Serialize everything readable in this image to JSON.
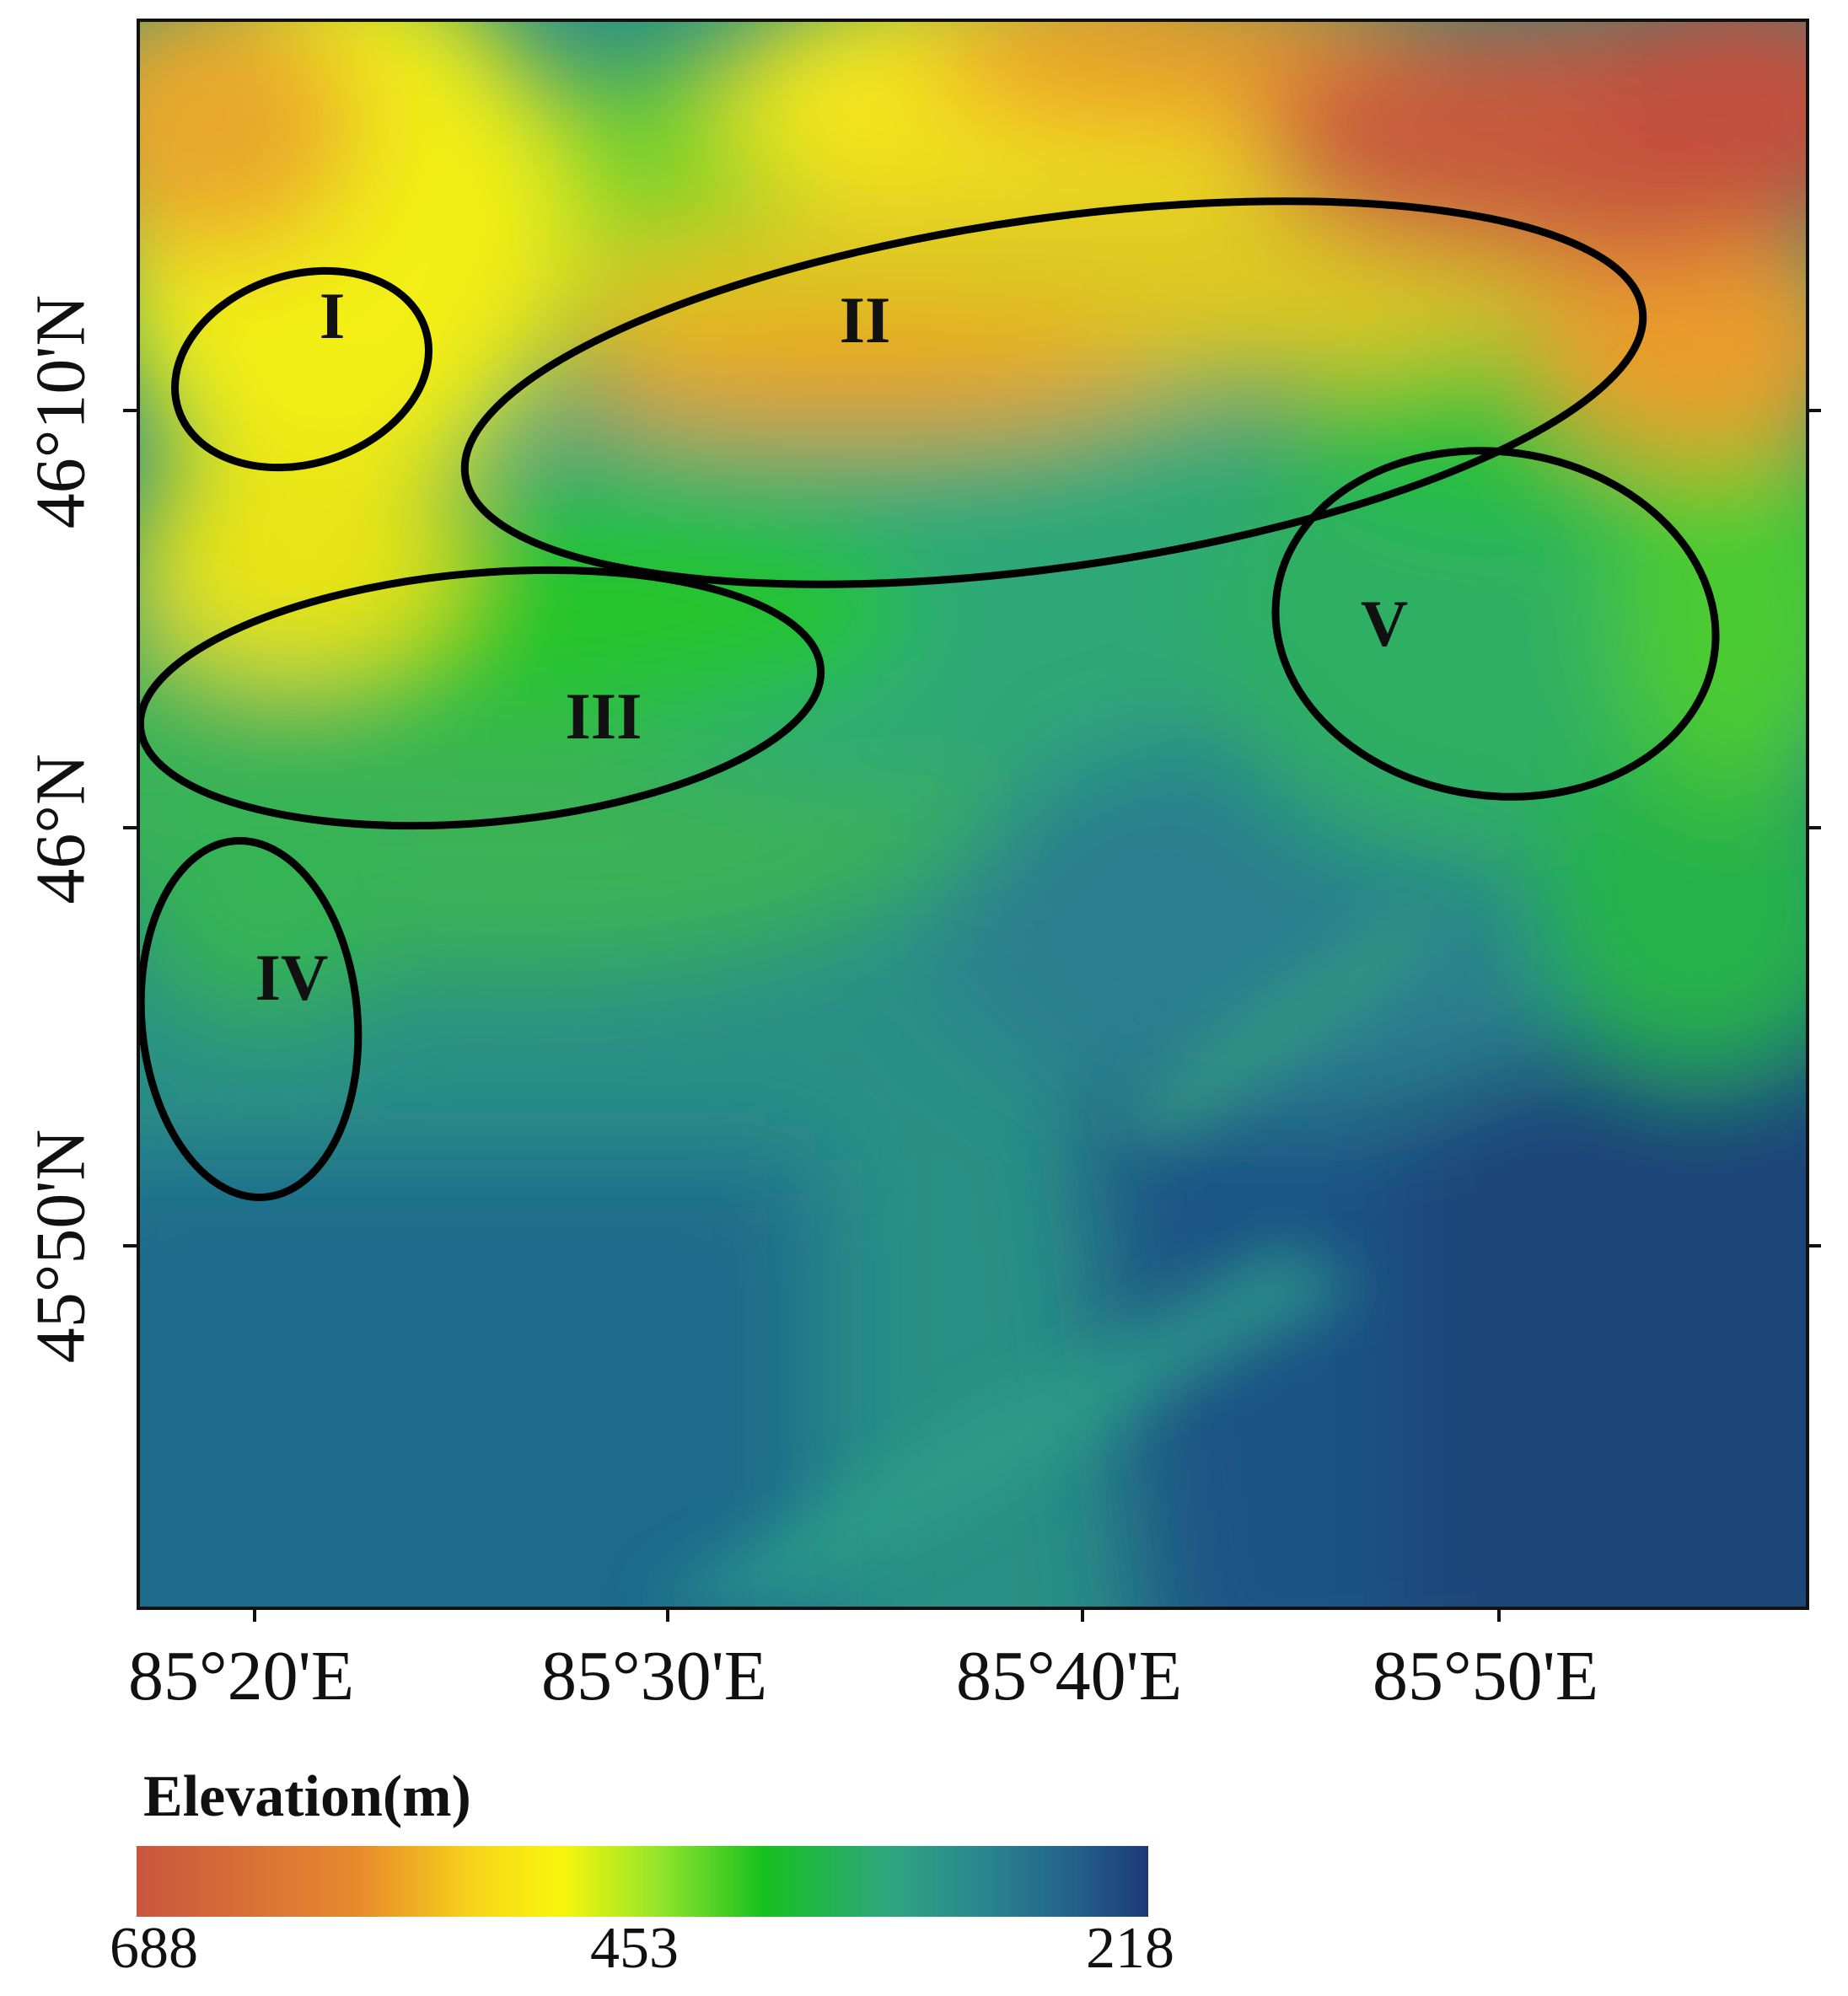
{
  "map": {
    "type": "elevation-dem",
    "x_axis_labels": [
      "85°20'E",
      "85°30'E",
      "85°40'E",
      "85°50'E"
    ],
    "y_axis_labels": [
      "46°10'N",
      "46°N",
      "45°50'N"
    ],
    "regions": [
      "I",
      "II",
      "III",
      "IV",
      "V"
    ]
  },
  "legend": {
    "title": "Elevation(m)",
    "min_label": "688",
    "mid_label": "453",
    "max_label": "218",
    "colors": [
      "#c9553f",
      "#e88a2c",
      "#f7d81a",
      "#f9f50c",
      "#8fe42a",
      "#16c01e",
      "#2ea77e",
      "#29858f",
      "#235f8a",
      "#1c3a78"
    ]
  }
}
